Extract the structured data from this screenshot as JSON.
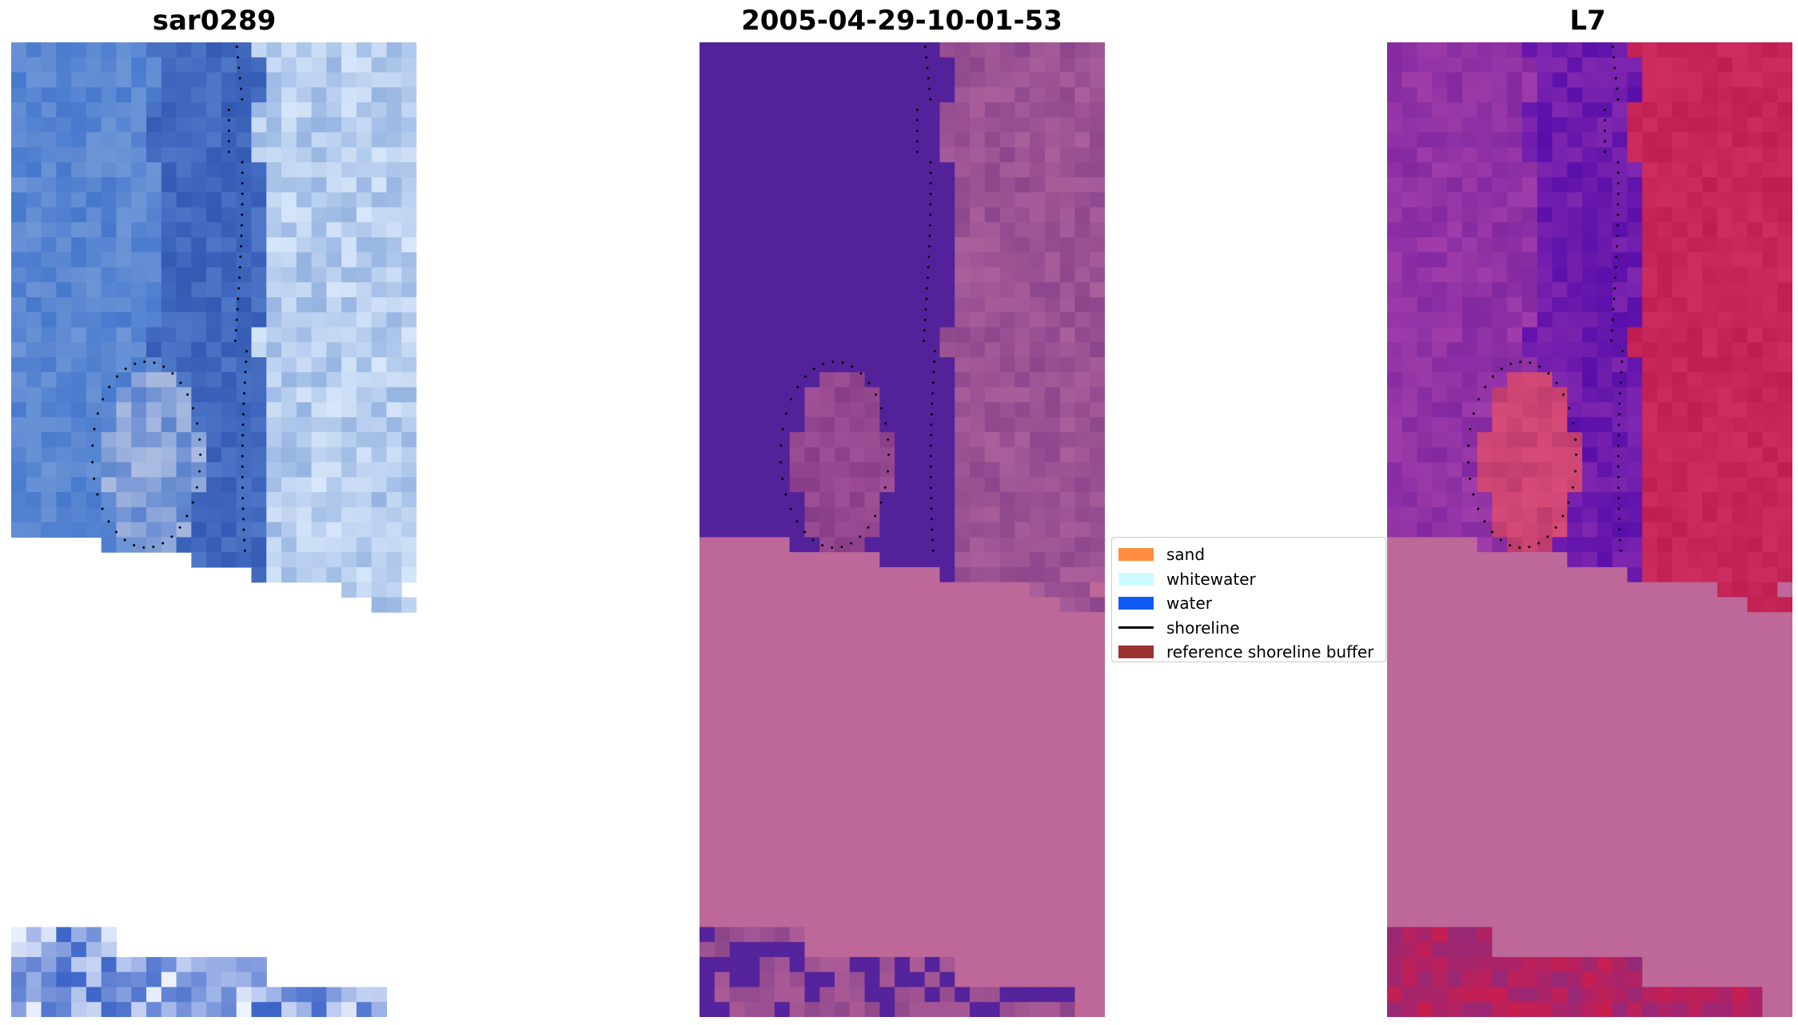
{
  "panels": [
    {
      "title": "sar0289",
      "variant": "rgb"
    },
    {
      "title": "2005-04-29-10-01-53",
      "variant": "classified"
    },
    {
      "title": "L7",
      "variant": "index"
    }
  ],
  "legend": {
    "items": [
      {
        "label": "sand",
        "color": "#ff8c3f",
        "kind": "patch"
      },
      {
        "label": "whitewater",
        "color": "#ccfcff",
        "kind": "patch"
      },
      {
        "label": "water",
        "color": "#0e5cf5",
        "kind": "patch"
      },
      {
        "label": "shoreline",
        "color": "#000000",
        "kind": "line"
      },
      {
        "label": "reference shoreline buffer",
        "color": "#9b3131",
        "kind": "patch"
      }
    ]
  },
  "colors": {
    "classified_water": "#53229a",
    "classified_buffer": "#9b5493",
    "nodata_overlay": "#bd6898",
    "index_land": "#c62552",
    "index_water": "#5c12ad"
  }
}
